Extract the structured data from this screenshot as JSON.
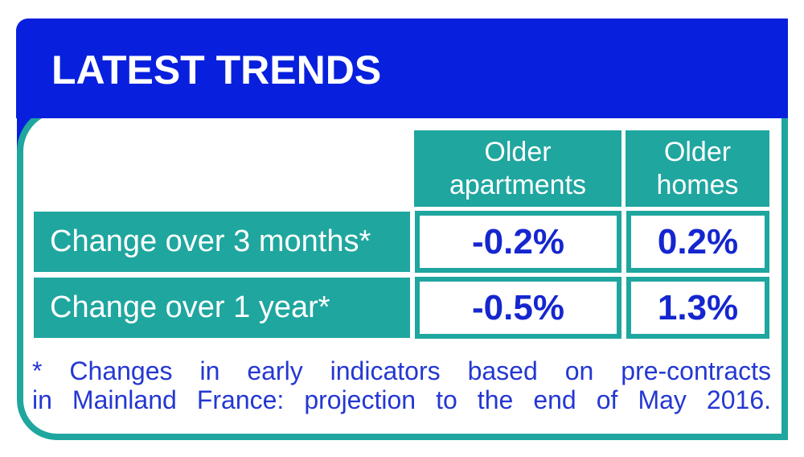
{
  "banner": {
    "title": "LATEST TRENDS"
  },
  "chart_data": {
    "type": "table",
    "title": "LATEST TRENDS",
    "columns": [
      "Older apartments",
      "Older homes"
    ],
    "rows": [
      {
        "label": "Change over 3 months*",
        "values": [
          "-0.2%",
          "0.2%"
        ]
      },
      {
        "label": "Change over 1 year*",
        "values": [
          "-0.5%",
          "1.3%"
        ]
      }
    ],
    "footnote": "* Changes in early indicators based on pre-contracts in Mainland France: projection to the end of May 2016."
  },
  "footnote": {
    "line1": "* Changes in early indicators based on pre-contracts",
    "line2": "in Mainland France: projection to the end of May 2016."
  },
  "colors": {
    "banner_blue": "#0820dd",
    "teal": "#1fa69f",
    "value_blue": "#1526cf",
    "footnote_blue": "#2437d2",
    "text_white": "#ffffff"
  }
}
